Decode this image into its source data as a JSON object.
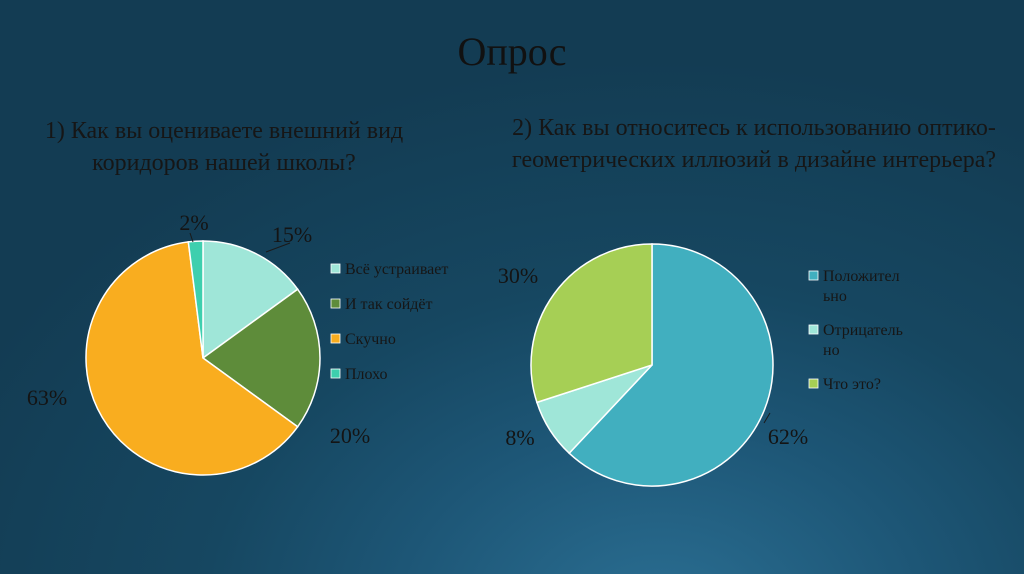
{
  "slide": {
    "title": "Опрос"
  },
  "chart_data": [
    {
      "type": "pie",
      "title": "1) Как вы оцениваете внешний вид коридоров нашей школы?",
      "categories": [
        "Всё устраивает",
        "И так сойдёт",
        "Скучно",
        "Плохо"
      ],
      "values": [
        15,
        20,
        63,
        2
      ],
      "labels": [
        "15%",
        "20%",
        "63%",
        "2%"
      ],
      "colors": [
        "#9fe6d8",
        "#5e8c3a",
        "#f9ad1f",
        "#3ecfae"
      ],
      "legend_lines": [
        [
          "Всё устраивает"
        ],
        [
          "И так сойдёт"
        ],
        [
          "Скучно"
        ],
        [
          "Плохо"
        ]
      ],
      "legend": "right"
    },
    {
      "type": "pie",
      "title": "2) Как вы относитесь к использованию оптико-геометрических иллюзий в дизайне интерьера?",
      "categories": [
        "Положительно",
        "Отрицательно",
        "Что это?"
      ],
      "values": [
        62,
        8,
        30
      ],
      "labels": [
        "62%",
        "8%",
        "30%"
      ],
      "colors": [
        "#41afbf",
        "#9fe6d8",
        "#a6cf55"
      ],
      "legend_lines": [
        [
          "Положител",
          "ьно"
        ],
        [
          "Отрицатель",
          "но"
        ],
        [
          "Что это?"
        ]
      ],
      "legend": "right"
    }
  ]
}
